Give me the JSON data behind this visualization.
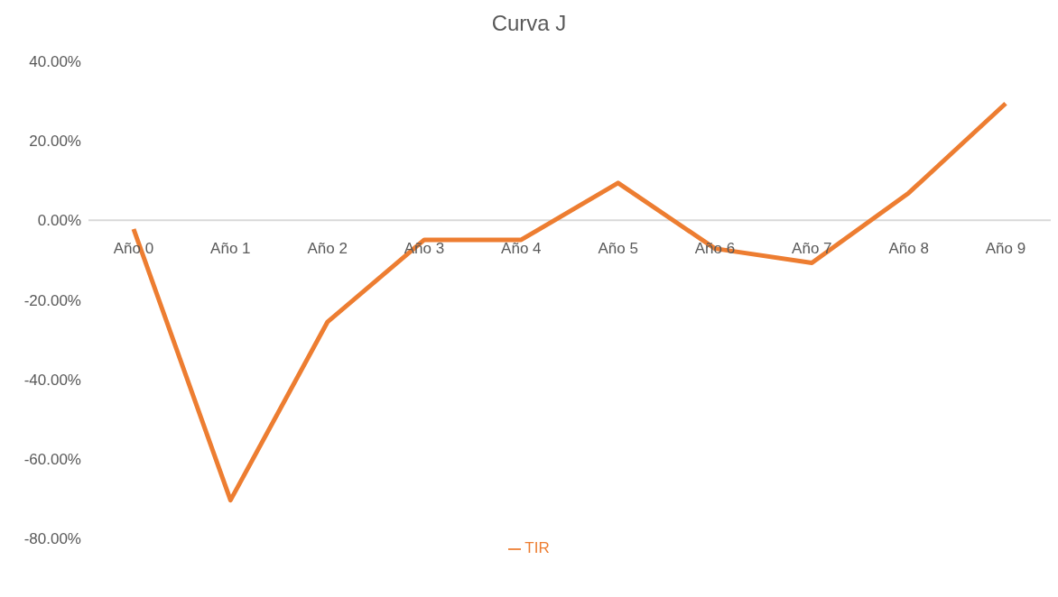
{
  "chart_data": {
    "type": "line",
    "title": "Curva J",
    "categories": [
      "Año 0",
      "Año 1",
      "Año 2",
      "Año 3",
      "Año 4",
      "Año 5",
      "Año 6",
      "Año 7",
      "Año 8",
      "Año 9"
    ],
    "series": [
      {
        "name": "TIR",
        "color": "#ed7d31",
        "values": [
          -2.2,
          -70.4,
          -25.6,
          -4.9,
          -4.9,
          9.4,
          -7.1,
          -10.7,
          6.9,
          29.4
        ]
      }
    ],
    "ylim": [
      -80,
      40
    ],
    "yticks": [
      {
        "value": 40,
        "label": "40.00%"
      },
      {
        "value": 20,
        "label": "20.00%"
      },
      {
        "value": 0,
        "label": "0.00%"
      },
      {
        "value": -20,
        "label": "-20.00%"
      },
      {
        "value": -40,
        "label": "-40.00%"
      },
      {
        "value": -60,
        "label": "-60.00%"
      },
      {
        "value": -80,
        "label": "-80.00%"
      }
    ],
    "grid": false,
    "legend": "bottom",
    "marker": "none",
    "line_style": "solid"
  }
}
